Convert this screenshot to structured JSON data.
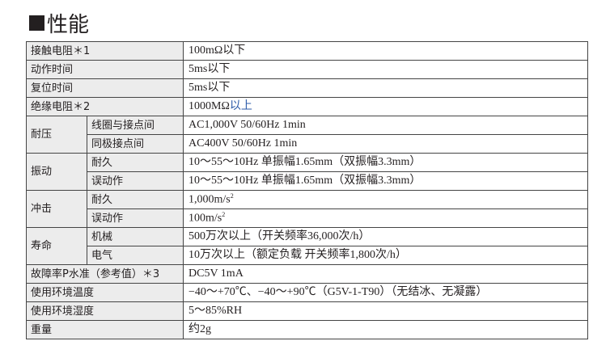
{
  "title": "性能",
  "rows": {
    "contact_resistance": {
      "label": "接触电阻＊1",
      "value": "100mΩ以下"
    },
    "operate_time": {
      "label": "动作时间",
      "value": "5ms以下"
    },
    "release_time": {
      "label": "复位时间",
      "value": "5ms以下"
    },
    "insulation": {
      "label": "绝缘电阻＊2",
      "value_main": "1000MΩ",
      "value_suffix": "以上"
    },
    "dielectric": {
      "label": "耐压",
      "sub": [
        {
          "label": "线圈与接点间",
          "value": "AC1,000V 50/60Hz 1min"
        },
        {
          "label": "同极接点间",
          "value": "AC400V 50/60Hz 1min"
        }
      ]
    },
    "vibration": {
      "label": "振动",
      "sub": [
        {
          "label": "耐久",
          "value": "10～55～10Hz 单振幅1.65mm（双振幅3.3mm）"
        },
        {
          "label": "误动作",
          "value": "10～55～10Hz 单振幅1.65mm（双振幅3.3mm）"
        }
      ]
    },
    "shock": {
      "label": "冲击",
      "sub": [
        {
          "label": "耐久",
          "value": "1,000m/s",
          "exp": "2"
        },
        {
          "label": "误动作",
          "value": "100m/s",
          "exp": "2"
        }
      ]
    },
    "life": {
      "label": "寿命",
      "sub": [
        {
          "label": "机械",
          "value": "500万次以上（开关频率36,000次/h）"
        },
        {
          "label": "电气",
          "value": "10万次以上（额定负载 开关频率1,800次/h）"
        }
      ]
    },
    "failure_rate": {
      "label": "故障率P水准（参考值）＊3",
      "value": "DC5V 1mA"
    },
    "ambient_temp": {
      "label": "使用环境温度",
      "value": "−40～+70℃、−40～+90℃（G5V-1-T90）（无结冰、无凝露）"
    },
    "ambient_humidity": {
      "label": "使用环境湿度",
      "value": "5～85%RH"
    },
    "weight": {
      "label": "重量",
      "value": "约2g"
    }
  }
}
